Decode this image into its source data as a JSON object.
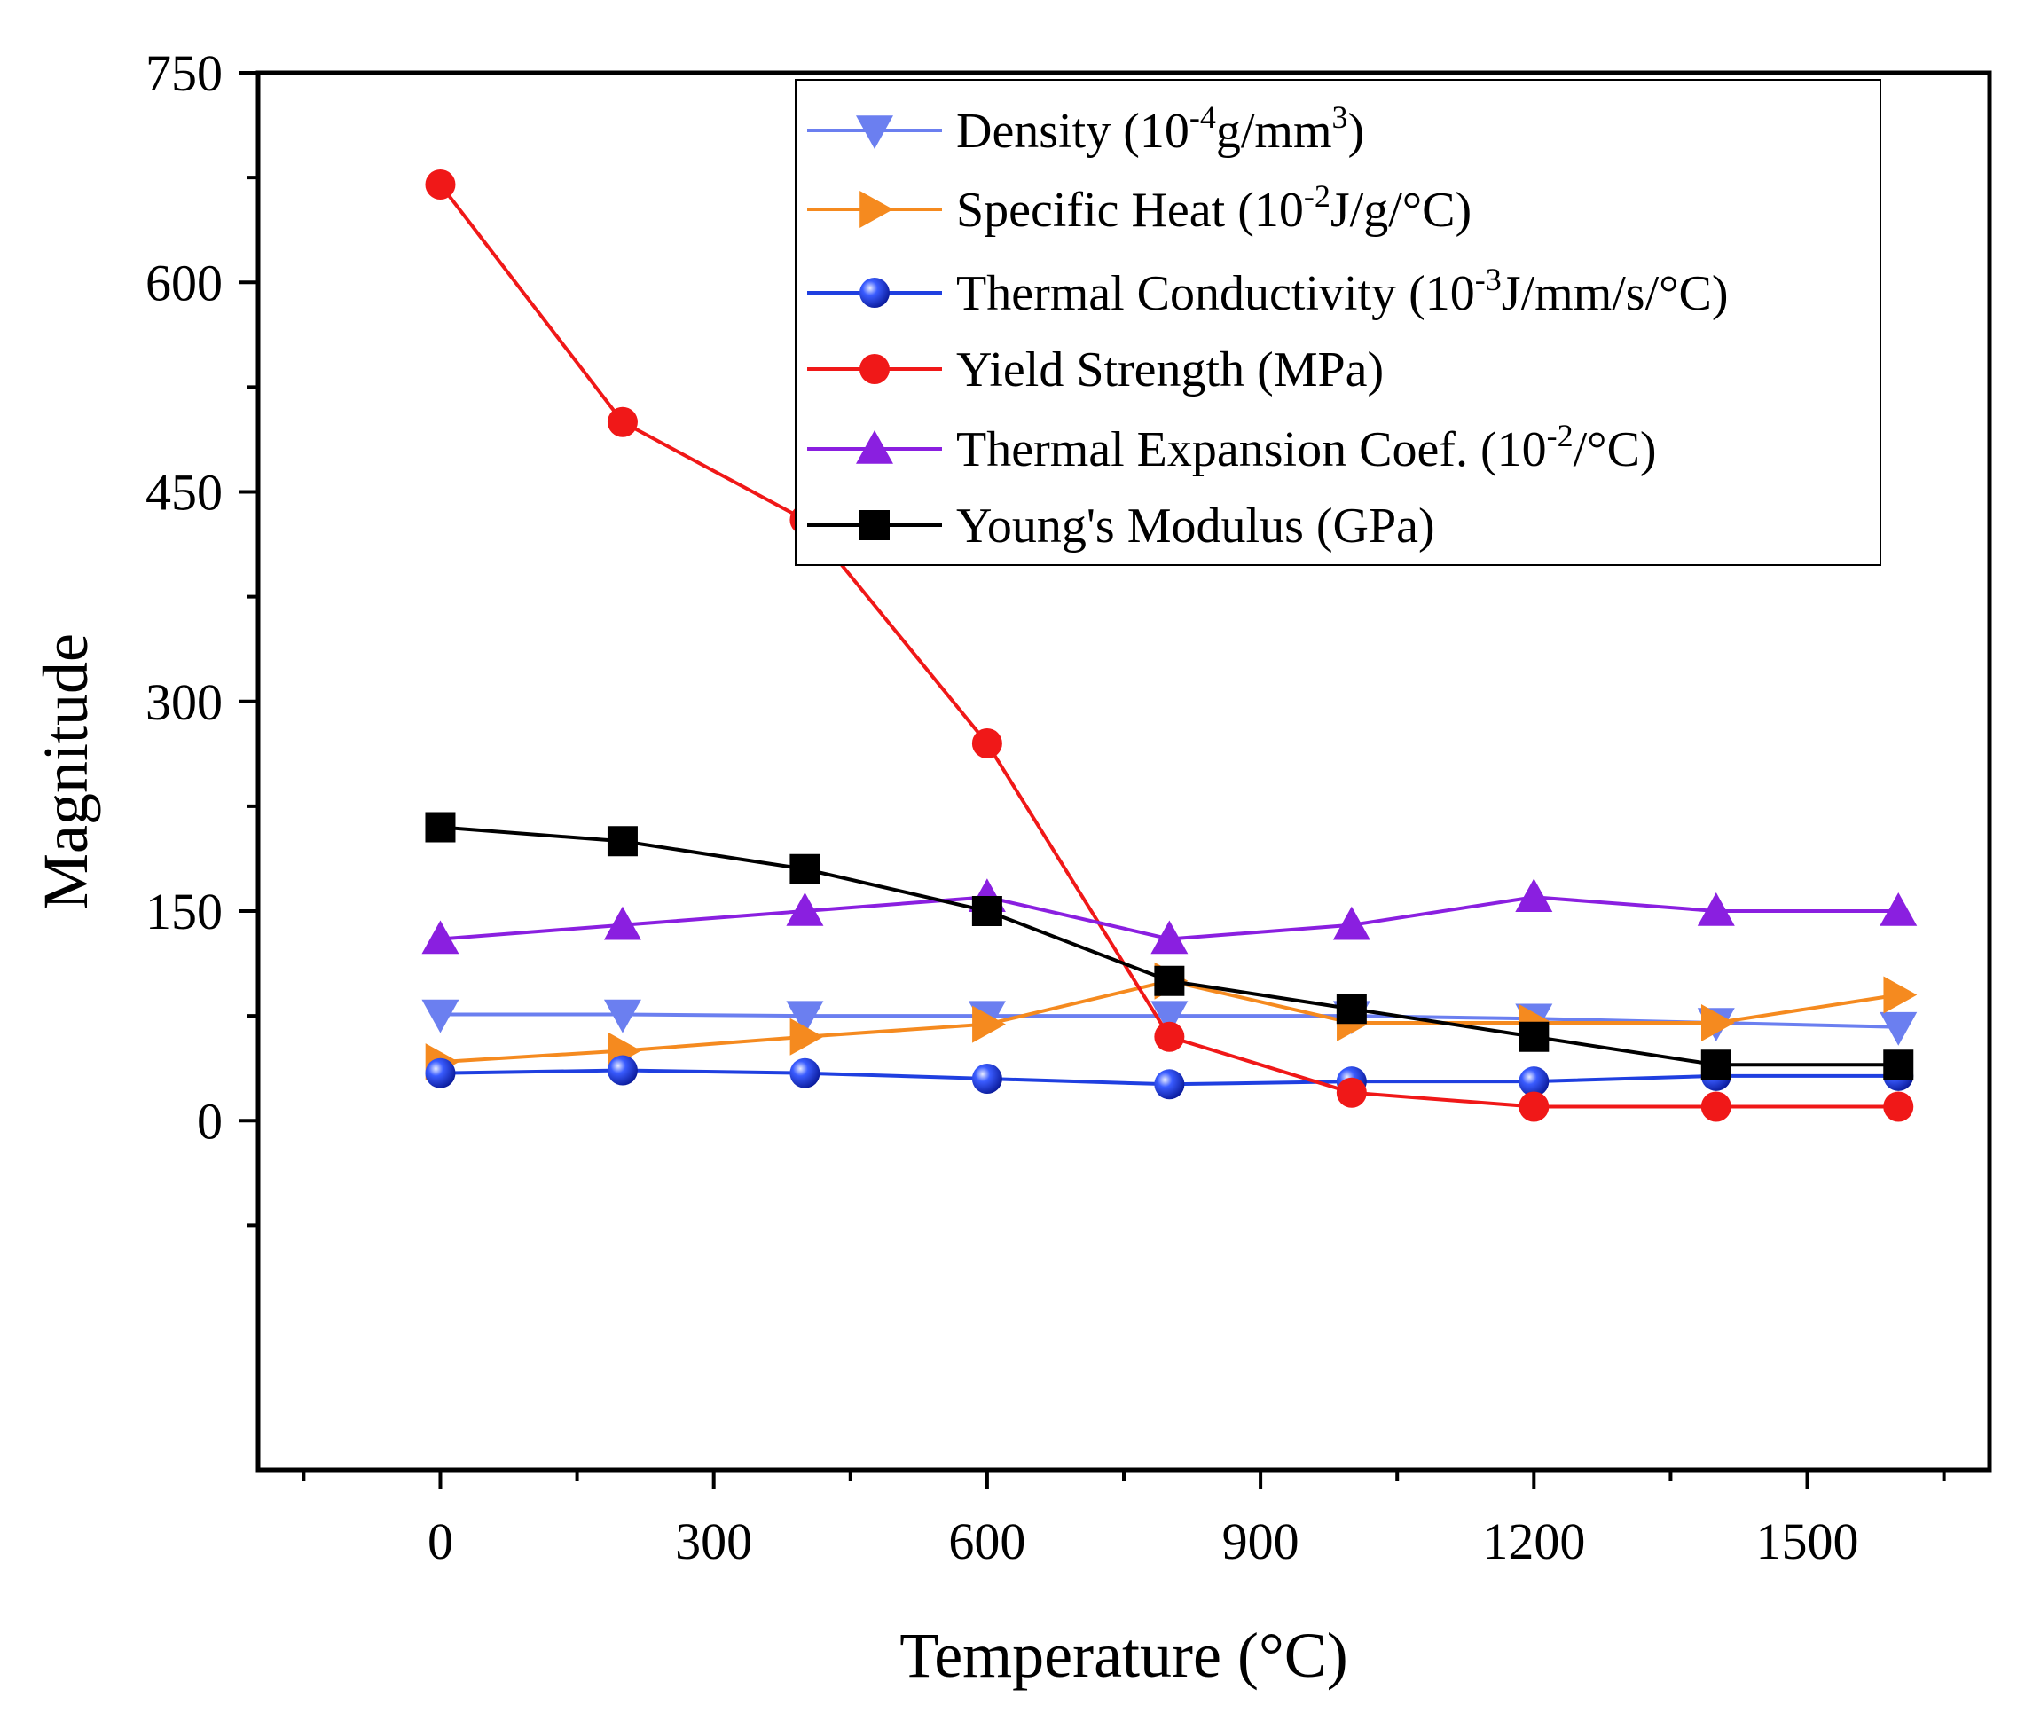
{
  "chart_data": {
    "type": "line",
    "title": "",
    "xlabel": "Temperature (°C)",
    "ylabel": "Magnitude",
    "xlim": [
      -200,
      1700
    ],
    "ylim": [
      -250,
      750
    ],
    "xticks": [
      0,
      300,
      600,
      900,
      1200,
      1500
    ],
    "xtick_labels": [
      "0",
      "300",
      "600",
      "900",
      "1200",
      "1500"
    ],
    "yticks": [
      0,
      150,
      300,
      450,
      600,
      750
    ],
    "ytick_labels": [
      "0",
      "150",
      "300",
      "450",
      "600",
      "750"
    ],
    "legend_position": "top-right",
    "grid": false,
    "x": [
      0,
      200,
      400,
      600,
      800,
      1000,
      1200,
      1400,
      1600
    ],
    "series": [
      {
        "name": "Density",
        "legend_text": "Density (10",
        "legend_sup": "-4",
        "legend_text2": "g/mm",
        "legend_sup2": "3",
        "legend_text3": ")",
        "color": "#6b7ff0",
        "marker": "triangle-down",
        "values": [
          76,
          76,
          75,
          75,
          75,
          75,
          73,
          70,
          67
        ]
      },
      {
        "name": "Specific Heat",
        "legend_text": "Specific Heat (10",
        "legend_sup": "-2",
        "legend_text2": "J/g/°C)",
        "color": "#f58a1f",
        "marker": "triangle-right",
        "values": [
          42,
          50,
          60,
          69,
          100,
          70,
          70,
          70,
          90
        ]
      },
      {
        "name": "Thermal Conductivity",
        "legend_text": "Thermal Conductivity (10",
        "legend_sup": "-3",
        "legend_text2": "J/mm/s/°C)",
        "color": "#1f3fe0",
        "marker": "sphere",
        "values": [
          34,
          36,
          34,
          30,
          26,
          28,
          28,
          32,
          32
        ]
      },
      {
        "name": "Yield Strength",
        "legend_text": "Yield Strength (MPa)",
        "color": "#f01818",
        "marker": "circle",
        "values": [
          670,
          500,
          430,
          270,
          60,
          20,
          10,
          10,
          10
        ]
      },
      {
        "name": "Thermal Expansion Coef.",
        "legend_text": "Thermal Expansion Coef. (10",
        "legend_sup": "-2",
        "legend_text2": "/°C)",
        "color": "#8a1fe0",
        "marker": "triangle-up",
        "values": [
          130,
          140,
          150,
          160,
          130,
          140,
          160,
          150,
          150
        ]
      },
      {
        "name": "Young's Modulus",
        "legend_text": "Young's Modulus (GPa)",
        "color": "#000000",
        "marker": "square",
        "values": [
          210,
          200,
          180,
          150,
          100,
          80,
          60,
          40,
          40
        ]
      }
    ]
  }
}
